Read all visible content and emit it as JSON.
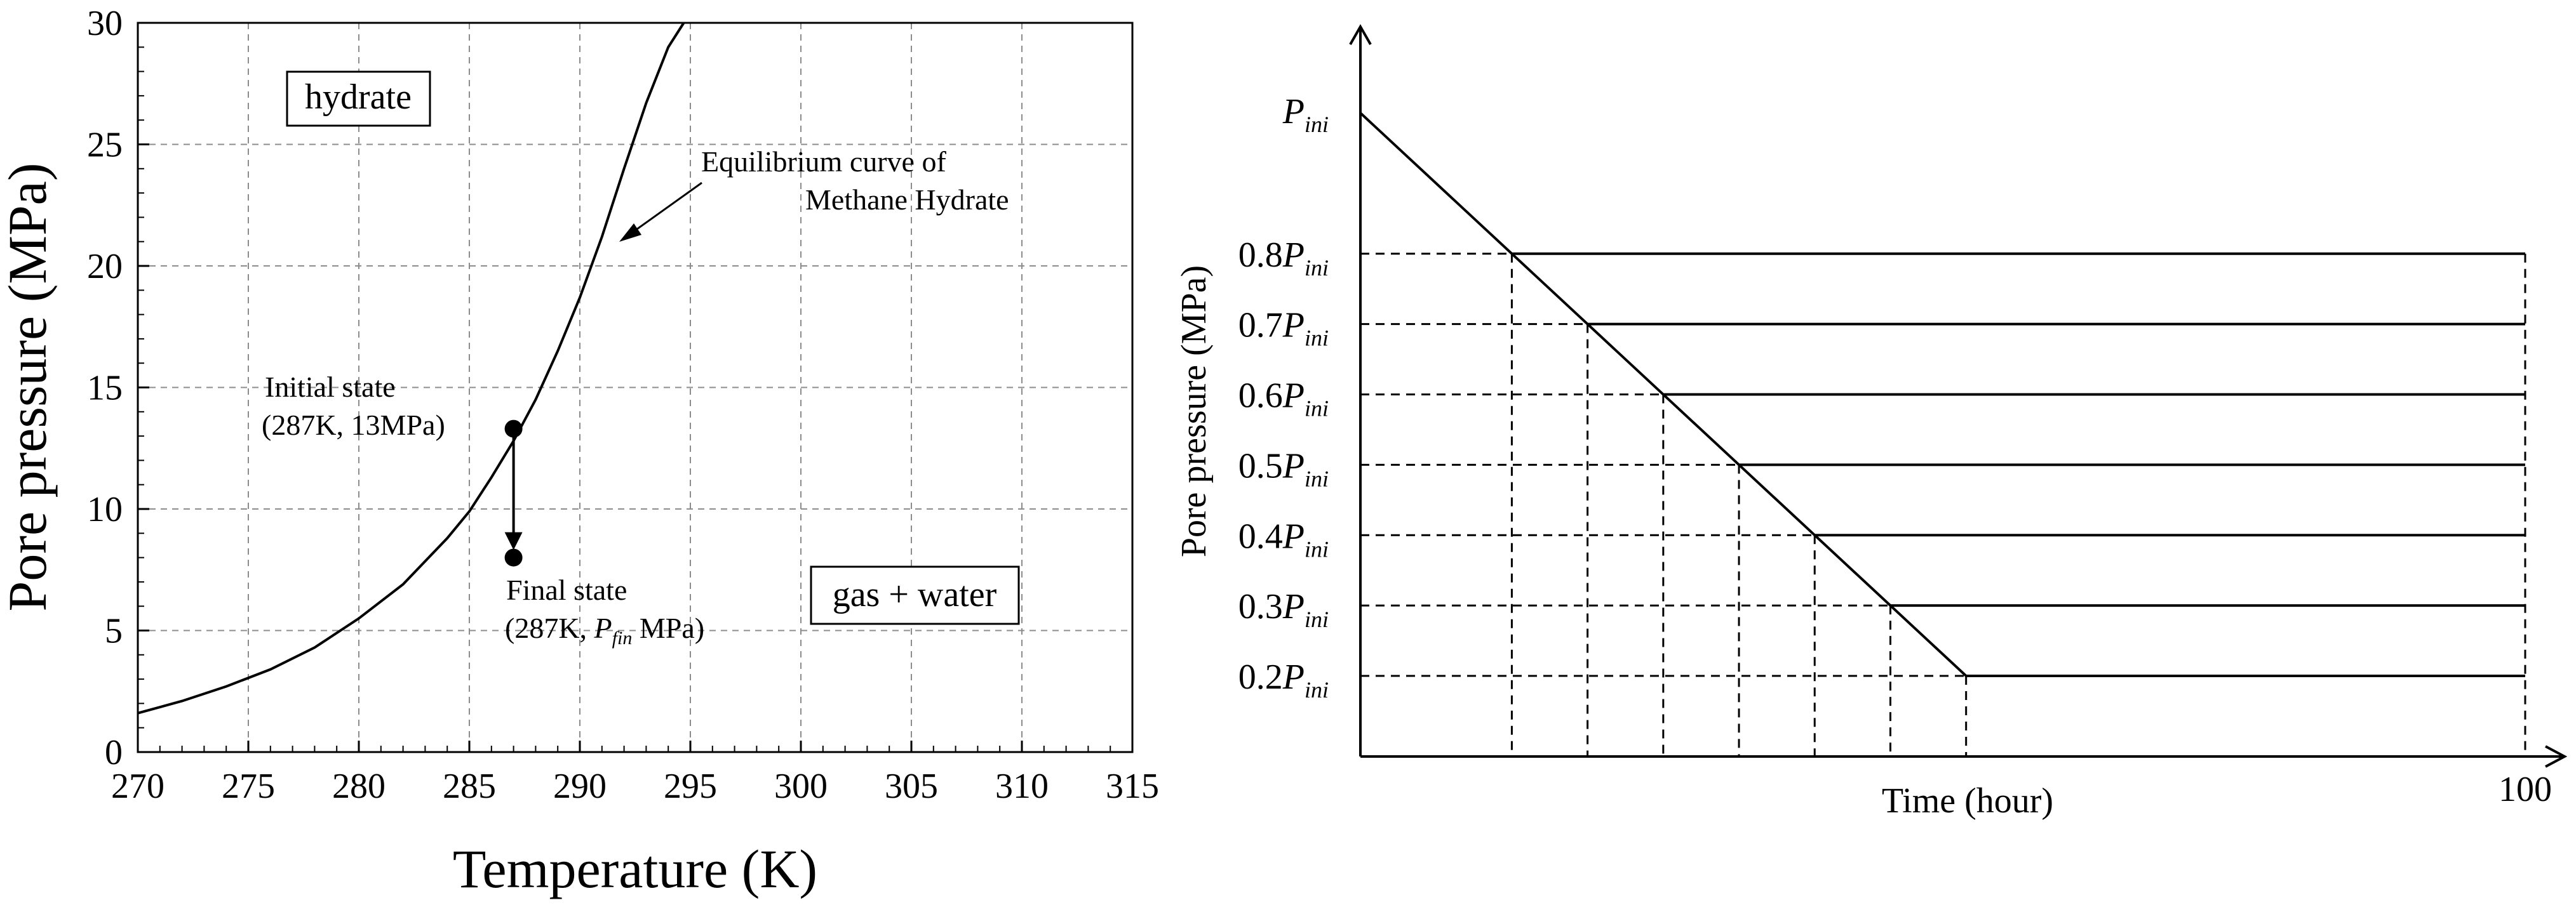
{
  "chart_data": [
    {
      "type": "line",
      "xlabel": "Temperature (K)",
      "ylabel": "Pore pressure (MPa)",
      "xlim": [
        270,
        315
      ],
      "ylim": [
        0,
        30
      ],
      "xticks": [
        "270",
        "275",
        "280",
        "285",
        "290",
        "295",
        "300",
        "305",
        "310",
        "315"
      ],
      "yticks": [
        "0",
        "5",
        "10",
        "15",
        "20",
        "25",
        "30"
      ],
      "grid": true,
      "series": [
        {
          "x": [
            270,
            272,
            274,
            276,
            278,
            280,
            282,
            284,
            285,
            286,
            287,
            288,
            289,
            290,
            291,
            292,
            293,
            294,
            294.7
          ],
          "y": [
            1.6,
            2.1,
            2.7,
            3.4,
            4.3,
            5.5,
            6.9,
            8.8,
            9.9,
            11.3,
            12.8,
            14.5,
            16.5,
            18.7,
            21.2,
            24.0,
            26.7,
            29.0,
            30.0
          ]
        }
      ],
      "region_labels": {
        "hydrate": "hydrate",
        "gas_water": "gas + water"
      },
      "annotations": {
        "curve_line1": "Equilibrium curve of",
        "curve_line2": "Methane Hydrate",
        "initial_line1": "Initial state",
        "initial_line2": "(287K, 13MPa)",
        "final_line1": "Final state",
        "final_pre": "(287K, ",
        "final_p": "P",
        "final_sub": "fin",
        "final_post": " MPa)"
      },
      "points": [
        {
          "name": "initial",
          "x": 287,
          "y": 13.3
        },
        {
          "name": "final",
          "x": 287,
          "y": 8.0
        }
      ]
    },
    {
      "type": "line",
      "xlabel": "Time (hour)",
      "ylabel": "Pore pressure (MPa)",
      "x_end_label": "100",
      "y_top_label": {
        "main": "P",
        "sub": "ini"
      },
      "ytick_labels": [
        {
          "coef": "0.8",
          "main": "P",
          "sub": "ini"
        },
        {
          "coef": "0.7",
          "main": "P",
          "sub": "ini"
        },
        {
          "coef": "0.6",
          "main": "P",
          "sub": "ini"
        },
        {
          "coef": "0.5",
          "main": "P",
          "sub": "ini"
        },
        {
          "coef": "0.4",
          "main": "P",
          "sub": "ini"
        },
        {
          "coef": "0.3",
          "main": "P",
          "sub": "ini"
        },
        {
          "coef": "0.2",
          "main": "P",
          "sub": "ini"
        }
      ],
      "levels": [
        1.0,
        0.8,
        0.7,
        0.6,
        0.5,
        0.4,
        0.3,
        0.2
      ],
      "decline_end_x": 52,
      "grid": false
    }
  ]
}
